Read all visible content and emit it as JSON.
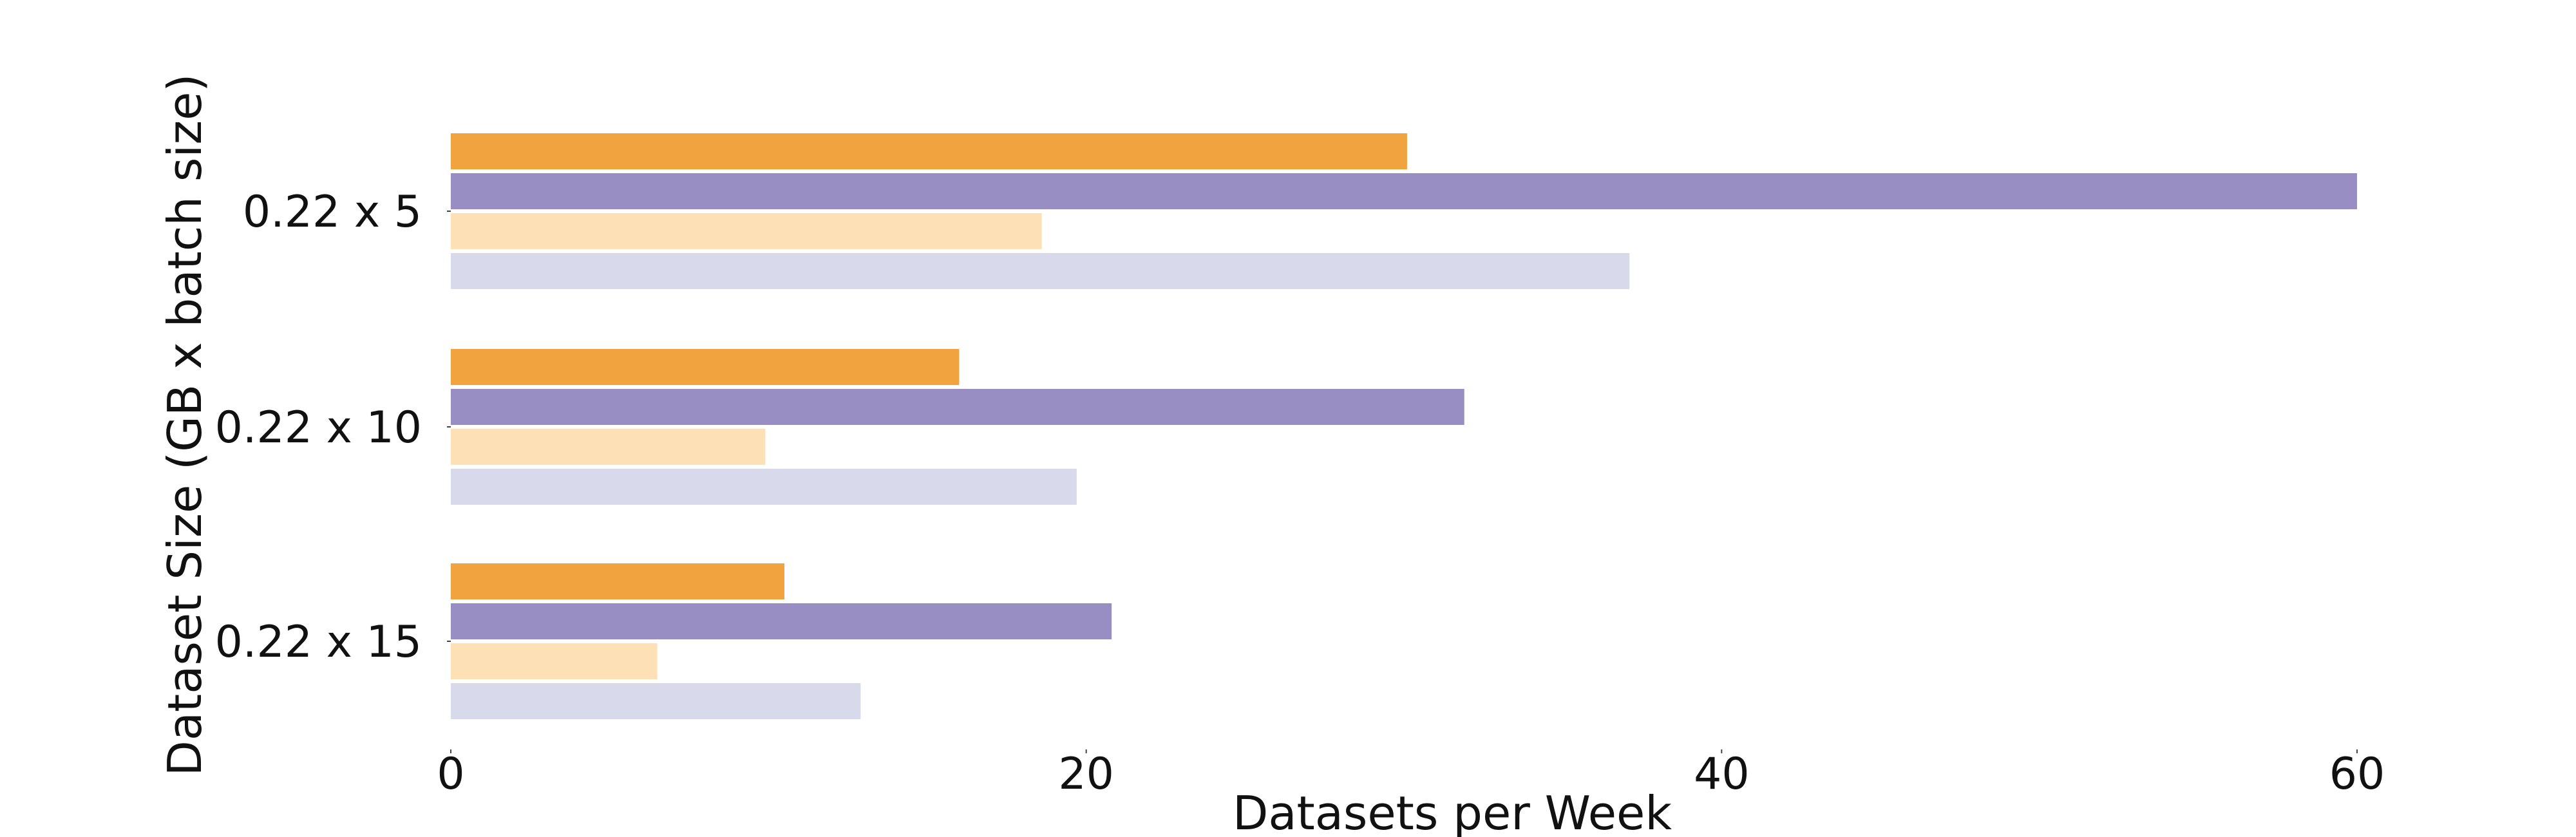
{
  "chart_data": {
    "type": "bar",
    "orientation": "horizontal",
    "title": "",
    "xlabel": "Datasets per Week",
    "ylabel": "Dataset Size (GB x batch size)",
    "categories": [
      "0.22 x 5",
      "0.22 x 10",
      "0.22 x 15"
    ],
    "series": [
      {
        "color": "#f1a340",
        "values": [
          30.1,
          16.0,
          10.5
        ]
      },
      {
        "color": "#998ec3",
        "values": [
          60.0,
          31.9,
          20.8
        ]
      },
      {
        "color": "#fee0b6",
        "values": [
          18.6,
          9.9,
          6.5
        ]
      },
      {
        "color": "#d8daeb",
        "values": [
          37.1,
          19.7,
          12.9
        ]
      }
    ],
    "xlim": [
      0,
      64
    ],
    "xticks": [
      0,
      20,
      40,
      60
    ],
    "xtick_labels": [
      "0",
      "20",
      "40",
      "60"
    ],
    "grid": false,
    "legend": "none"
  }
}
